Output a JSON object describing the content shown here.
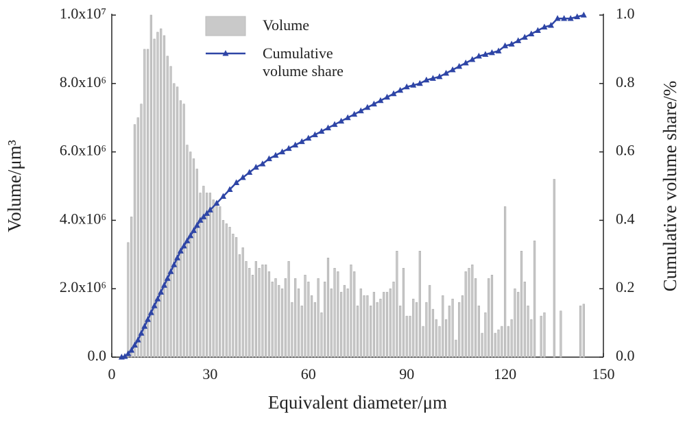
{
  "chart_data": {
    "type": "bar-line",
    "xlabel": "Equivalent diameter/μm",
    "ylabel": "Volume/μm³",
    "y2label": "Cumulative volume share/%",
    "xlim": [
      0,
      150
    ],
    "xticks": [
      0,
      30,
      60,
      90,
      120,
      150
    ],
    "ylim": [
      0,
      10000000
    ],
    "yticks": [
      {
        "value": 0,
        "label": "0.0"
      },
      {
        "value": 2000000,
        "label": "2.0x10⁶"
      },
      {
        "value": 4000000,
        "label": "4.0x10⁶"
      },
      {
        "value": 6000000,
        "label": "6.0x10⁶"
      },
      {
        "value": 8000000,
        "label": "8.0x10⁶"
      },
      {
        "value": 10000000,
        "label": "1.0x10⁷"
      }
    ],
    "y2lim": [
      0,
      1
    ],
    "y2ticks": [
      {
        "value": 0,
        "label": "0.0"
      },
      {
        "value": 0.2,
        "label": "0.2"
      },
      {
        "value": 0.4,
        "label": "0.4"
      },
      {
        "value": 0.6,
        "label": "0.6"
      },
      {
        "value": 0.8,
        "label": "0.8"
      },
      {
        "value": 1,
        "label": "1.0"
      }
    ],
    "series": [
      {
        "name": "Volume",
        "type": "bar",
        "color": "#c9c9c9",
        "x": [
          5,
          6,
          7,
          8,
          9,
          10,
          11,
          12,
          13,
          14,
          15,
          16,
          17,
          18,
          19,
          20,
          21,
          22,
          23,
          24,
          25,
          26,
          27,
          28,
          29,
          30,
          31,
          32,
          33,
          34,
          35,
          36,
          37,
          38,
          39,
          40,
          41,
          42,
          43,
          44,
          45,
          46,
          47,
          48,
          49,
          50,
          51,
          52,
          53,
          54,
          55,
          56,
          57,
          58,
          59,
          60,
          61,
          62,
          63,
          64,
          65,
          66,
          67,
          68,
          69,
          70,
          71,
          72,
          73,
          74,
          75,
          76,
          77,
          78,
          79,
          80,
          81,
          82,
          83,
          84,
          85,
          86,
          87,
          88,
          89,
          90,
          91,
          92,
          93,
          94,
          95,
          96,
          97,
          98,
          99,
          100,
          101,
          102,
          103,
          104,
          105,
          106,
          107,
          108,
          109,
          110,
          111,
          112,
          113,
          114,
          115,
          116,
          117,
          118,
          119,
          120,
          121,
          122,
          123,
          124,
          125,
          126,
          127,
          128,
          129,
          131,
          132,
          135,
          137,
          143,
          144
        ],
        "values": [
          3350000,
          4100000,
          6800000,
          7000000,
          7400000,
          9000000,
          9000000,
          10000000,
          9300000,
          9500000,
          9600000,
          9400000,
          8800000,
          8500000,
          8000000,
          7900000,
          7500000,
          7400000,
          6200000,
          6000000,
          5800000,
          5500000,
          4800000,
          5000000,
          4800000,
          4800000,
          4600000,
          4500000,
          4400000,
          4000000,
          3900000,
          3800000,
          3600000,
          3500000,
          3000000,
          3200000,
          2800000,
          2600000,
          2400000,
          2800000,
          2600000,
          2700000,
          2700000,
          2500000,
          2200000,
          2300000,
          2100000,
          2000000,
          2300000,
          2800000,
          1600000,
          2300000,
          2000000,
          1500000,
          2400000,
          2200000,
          1800000,
          1600000,
          2300000,
          1300000,
          2200000,
          2900000,
          2000000,
          2600000,
          2500000,
          1900000,
          2100000,
          2000000,
          2700000,
          2500000,
          1500000,
          2000000,
          1800000,
          1800000,
          1500000,
          1900000,
          1600000,
          1700000,
          1900000,
          1900000,
          2000000,
          2200000,
          3100000,
          1500000,
          2600000,
          1200000,
          1200000,
          1700000,
          1600000,
          3100000,
          900000,
          1600000,
          2100000,
          1400000,
          1100000,
          900000,
          1800000,
          1100000,
          1500000,
          1700000,
          500000,
          1600000,
          1800000,
          2500000,
          2600000,
          2700000,
          2300000,
          1500000,
          700000,
          1300000,
          2300000,
          2400000,
          700000,
          800000,
          900000,
          4400000,
          900000,
          1100000,
          2000000,
          1900000,
          3100000,
          2200000,
          1500000,
          1100000,
          3400000,
          1200000,
          1300000,
          5200000,
          1350000,
          1500000,
          1550000
        ]
      },
      {
        "name": "Cumulative volume share",
        "type": "line",
        "axis": "y2",
        "color": "#2e45a6",
        "x": [
          3,
          4,
          5,
          6,
          7,
          8,
          9,
          10,
          11,
          12,
          13,
          14,
          15,
          16,
          17,
          18,
          19,
          20,
          21,
          22,
          23,
          24,
          25,
          26,
          27,
          28,
          29,
          30,
          32,
          34,
          36,
          38,
          40,
          42,
          44,
          46,
          48,
          50,
          52,
          54,
          56,
          58,
          60,
          62,
          64,
          66,
          68,
          70,
          72,
          74,
          76,
          78,
          80,
          82,
          84,
          86,
          88,
          90,
          92,
          94,
          96,
          98,
          100,
          102,
          104,
          106,
          108,
          110,
          112,
          114,
          116,
          118,
          120,
          122,
          124,
          126,
          128,
          130,
          132,
          134,
          136,
          138,
          140,
          142,
          144
        ],
        "values": [
          0,
          0.002,
          0.01,
          0.02,
          0.035,
          0.05,
          0.07,
          0.09,
          0.11,
          0.13,
          0.15,
          0.17,
          0.19,
          0.21,
          0.23,
          0.25,
          0.27,
          0.29,
          0.31,
          0.325,
          0.34,
          0.355,
          0.37,
          0.385,
          0.4,
          0.41,
          0.42,
          0.43,
          0.45,
          0.47,
          0.49,
          0.51,
          0.525,
          0.54,
          0.555,
          0.565,
          0.58,
          0.59,
          0.6,
          0.61,
          0.62,
          0.63,
          0.64,
          0.65,
          0.66,
          0.67,
          0.68,
          0.69,
          0.7,
          0.71,
          0.72,
          0.73,
          0.74,
          0.75,
          0.76,
          0.77,
          0.78,
          0.79,
          0.795,
          0.8,
          0.81,
          0.815,
          0.82,
          0.83,
          0.84,
          0.85,
          0.86,
          0.87,
          0.88,
          0.885,
          0.89,
          0.895,
          0.91,
          0.915,
          0.925,
          0.935,
          0.945,
          0.955,
          0.965,
          0.97,
          0.99,
          0.99,
          0.99,
          0.995,
          1.0
        ]
      }
    ]
  }
}
